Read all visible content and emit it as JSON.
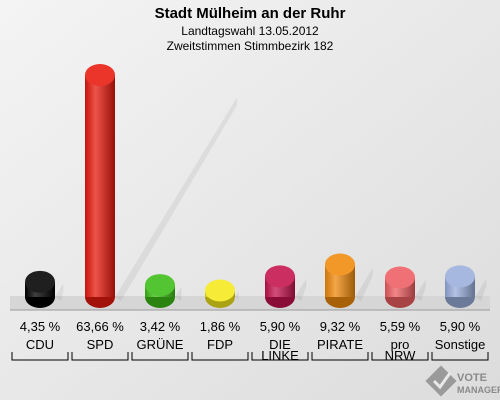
{
  "chart_data": {
    "type": "bar",
    "title": "Stadt Mülheim an der Ruhr",
    "subtitle_1": "Landtagswahl 13.05.2012",
    "subtitle_2": "Zweitstimmen Stimmbezirk 182",
    "categories": [
      [
        "CDU"
      ],
      [
        "SPD"
      ],
      [
        "GRÜNE"
      ],
      [
        "FDP"
      ],
      [
        "DIE",
        "LINKE"
      ],
      [
        "PIRATE"
      ],
      [
        "pro",
        "NRW"
      ],
      [
        "Sonstige"
      ]
    ],
    "values": [
      4.35,
      63.66,
      3.42,
      1.86,
      5.9,
      9.32,
      5.59,
      5.9
    ],
    "value_labels": [
      "4,35 %",
      "63,66 %",
      "3,42 %",
      "1,86 %",
      "5,90 %",
      "9,32 %",
      "5,59 %",
      "5,90 %"
    ],
    "colors": [
      "#000000",
      "#e8190e",
      "#3dbd16",
      "#f5e91c",
      "#c4134d",
      "#f08a0c",
      "#ee5e62",
      "#9aaedc"
    ],
    "ylim": [
      0,
      63.66
    ],
    "grid": false,
    "legend": "none"
  },
  "logo": {
    "line1": "VOTE",
    "line2": "MANAGER",
    "icon": "checkmark-ballot-icon"
  }
}
